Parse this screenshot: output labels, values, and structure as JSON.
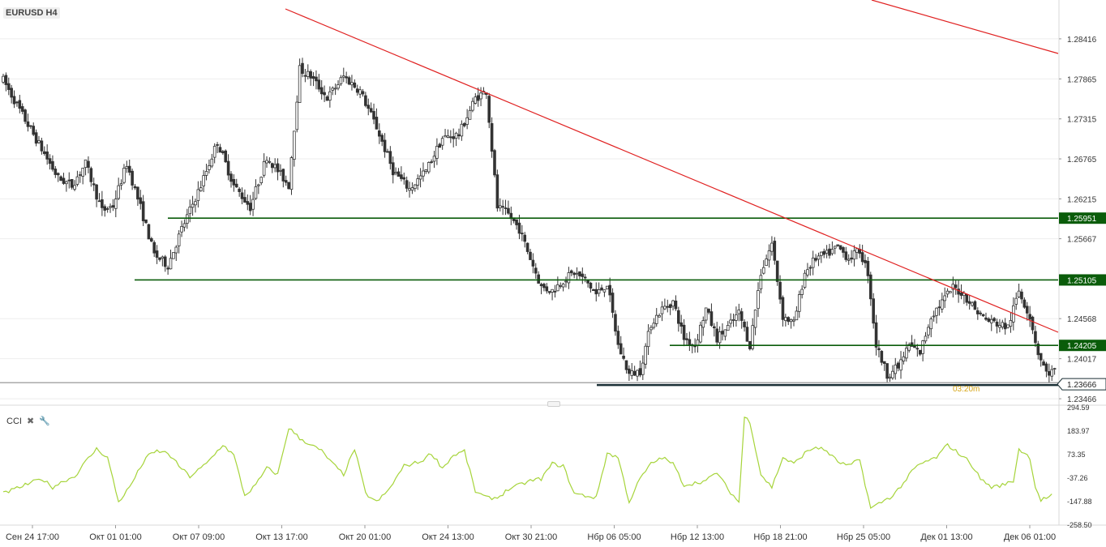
{
  "header": {
    "symbol": "EURUSD H4"
  },
  "cci": {
    "label": "CCI",
    "close_icon": "close-icon",
    "settings_icon": "wrench-icon"
  },
  "colors": {
    "up": "#333333",
    "down": "#333333",
    "trend": "#e02020",
    "support": "#0a5c0a",
    "cci": "#a6d43a",
    "timer": "#d6a516",
    "current_tag": "#ffffff",
    "grid": "#eeeeee"
  },
  "chart_data": [
    {
      "type": "candlestick",
      "title": "EURUSD H4",
      "x": [
        "Сен 24 17:00",
        "Окт 01 01:00",
        "Окт 07 09:00",
        "Окт 13 17:00",
        "Окт 20 01:00",
        "Окт 24 13:00",
        "Окт 30 21:00",
        "Нбр 06 05:00",
        "Нбр 12 13:00",
        "Нбр 18 21:00",
        "Нбр 25 05:00",
        "Дек 01 13:00",
        "Дек 06 01:00"
      ],
      "y_ticks": [
        "1.28416",
        "1.27865",
        "1.27315",
        "1.26765",
        "1.26215",
        "1.25667",
        "1.24568",
        "1.24017",
        "1.23466"
      ],
      "ylim": [
        1.234,
        1.2895
      ],
      "anchors": [
        [
          0,
          1.2785
        ],
        [
          8,
          1.273
        ],
        [
          14,
          1.269
        ],
        [
          20,
          1.265
        ],
        [
          25,
          1.264
        ],
        [
          30,
          1.267
        ],
        [
          36,
          1.2605
        ],
        [
          40,
          1.2612
        ],
        [
          45,
          1.267
        ],
        [
          50,
          1.261
        ],
        [
          55,
          1.2545
        ],
        [
          60,
          1.253
        ],
        [
          65,
          1.258
        ],
        [
          72,
          1.264
        ],
        [
          78,
          1.27
        ],
        [
          84,
          1.264
        ],
        [
          90,
          1.261
        ],
        [
          96,
          1.268
        ],
        [
          100,
          1.266
        ],
        [
          104,
          1.264
        ],
        [
          108,
          1.28
        ],
        [
          112,
          1.279
        ],
        [
          118,
          1.276
        ],
        [
          124,
          1.279
        ],
        [
          130,
          1.277
        ],
        [
          136,
          1.272
        ],
        [
          142,
          1.266
        ],
        [
          148,
          1.2635
        ],
        [
          154,
          1.266
        ],
        [
          160,
          1.2705
        ],
        [
          166,
          1.271
        ],
        [
          172,
          1.276
        ],
        [
          176,
          1.277
        ],
        [
          180,
          1.261
        ],
        [
          184,
          1.26
        ],
        [
          188,
          1.258
        ],
        [
          192,
          1.254
        ],
        [
          196,
          1.25
        ],
        [
          200,
          1.2495
        ],
        [
          204,
          1.251
        ],
        [
          208,
          1.252
        ],
        [
          212,
          1.251
        ],
        [
          216,
          1.249
        ],
        [
          220,
          1.2505
        ],
        [
          224,
          1.242
        ],
        [
          228,
          1.238
        ],
        [
          232,
          1.2385
        ],
        [
          236,
          1.245
        ],
        [
          240,
          1.247
        ],
        [
          244,
          1.248
        ],
        [
          248,
          1.243
        ],
        [
          252,
          1.242
        ],
        [
          256,
          1.247
        ],
        [
          260,
          1.243
        ],
        [
          264,
          1.2445
        ],
        [
          268,
          1.2465
        ],
        [
          272,
          1.242
        ],
        [
          276,
          1.252
        ],
        [
          280,
          1.256
        ],
        [
          284,
          1.246
        ],
        [
          288,
          1.245
        ],
        [
          292,
          1.252
        ],
        [
          296,
          1.254
        ],
        [
          300,
          1.2545
        ],
        [
          304,
          1.2555
        ],
        [
          308,
          1.254
        ],
        [
          312,
          1.255
        ],
        [
          315,
          1.252
        ],
        [
          318,
          1.242
        ],
        [
          322,
          1.238
        ],
        [
          326,
          1.239
        ],
        [
          330,
          1.242
        ],
        [
          334,
          1.241
        ],
        [
          338,
          1.246
        ],
        [
          342,
          1.248
        ],
        [
          346,
          1.25
        ],
        [
          350,
          1.249
        ],
        [
          354,
          1.247
        ],
        [
          358,
          1.2455
        ],
        [
          362,
          1.245
        ],
        [
          366,
          1.2445
        ],
        [
          370,
          1.2495
        ],
        [
          374,
          1.246
        ],
        [
          377,
          1.241
        ],
        [
          380,
          1.2382
        ],
        [
          383,
          1.2385
        ]
      ],
      "horizontal_levels": [
        {
          "label": "1.25951",
          "value": 1.2595
        },
        {
          "label": "1.25105",
          "value": 1.251
        },
        {
          "label": "1.24205",
          "value": 1.242
        }
      ],
      "support_line": {
        "label": "1.23666",
        "value": 1.23666,
        "timer": "03:20m"
      },
      "current_price": {
        "label": "1.23666",
        "value": 1.23666
      },
      "trend_lines": [
        {
          "name": "upper",
          "from": [
            0,
            0
          ],
          "to": [
            1,
            1
          ]
        }
      ]
    },
    {
      "type": "line",
      "title": "CCI",
      "y_ticks": [
        "294.59",
        "183.97",
        "73.35",
        "-37.26",
        "-147.88",
        "-258.50"
      ],
      "ylim": [
        -258.5,
        294.59
      ],
      "anchors": [
        [
          0,
          -110
        ],
        [
          6,
          -80
        ],
        [
          10,
          -60
        ],
        [
          14,
          -40
        ],
        [
          18,
          -80
        ],
        [
          22,
          -50
        ],
        [
          26,
          -30
        ],
        [
          30,
          40
        ],
        [
          34,
          100
        ],
        [
          38,
          60
        ],
        [
          42,
          -150
        ],
        [
          46,
          -80
        ],
        [
          52,
          60
        ],
        [
          56,
          90
        ],
        [
          60,
          80
        ],
        [
          64,
          20
        ],
        [
          68,
          -30
        ],
        [
          74,
          30
        ],
        [
          80,
          120
        ],
        [
          84,
          70
        ],
        [
          88,
          -120
        ],
        [
          92,
          -70
        ],
        [
          96,
          10
        ],
        [
          100,
          -20
        ],
        [
          104,
          200
        ],
        [
          108,
          150
        ],
        [
          112,
          120
        ],
        [
          116,
          90
        ],
        [
          120,
          30
        ],
        [
          124,
          -20
        ],
        [
          128,
          100
        ],
        [
          132,
          -110
        ],
        [
          136,
          -150
        ],
        [
          140,
          -100
        ],
        [
          146,
          20
        ],
        [
          152,
          40
        ],
        [
          156,
          80
        ],
        [
          160,
          10
        ],
        [
          164,
          70
        ],
        [
          168,
          90
        ],
        [
          172,
          -100
        ],
        [
          176,
          -130
        ],
        [
          180,
          -130
        ],
        [
          184,
          -90
        ],
        [
          188,
          -70
        ],
        [
          192,
          -50
        ],
        [
          196,
          -40
        ],
        [
          200,
          30
        ],
        [
          204,
          20
        ],
        [
          208,
          -110
        ],
        [
          212,
          -120
        ],
        [
          216,
          -130
        ],
        [
          220,
          80
        ],
        [
          224,
          60
        ],
        [
          228,
          -150
        ],
        [
          232,
          -40
        ],
        [
          236,
          30
        ],
        [
          240,
          60
        ],
        [
          244,
          30
        ],
        [
          248,
          -70
        ],
        [
          252,
          -60
        ],
        [
          256,
          -50
        ],
        [
          260,
          -10
        ],
        [
          264,
          -90
        ],
        [
          268,
          -150
        ],
        [
          270,
          250
        ],
        [
          272,
          230
        ],
        [
          276,
          -20
        ],
        [
          280,
          -80
        ],
        [
          284,
          60
        ],
        [
          288,
          30
        ],
        [
          292,
          80
        ],
        [
          296,
          110
        ],
        [
          300,
          90
        ],
        [
          304,
          40
        ],
        [
          308,
          20
        ],
        [
          312,
          50
        ],
        [
          316,
          -180
        ],
        [
          320,
          -150
        ],
        [
          324,
          -120
        ],
        [
          328,
          -60
        ],
        [
          332,
          10
        ],
        [
          336,
          40
        ],
        [
          340,
          60
        ],
        [
          344,
          120
        ],
        [
          348,
          80
        ],
        [
          352,
          40
        ],
        [
          356,
          -40
        ],
        [
          360,
          -80
        ],
        [
          364,
          -70
        ],
        [
          368,
          -50
        ],
        [
          370,
          100
        ],
        [
          374,
          60
        ],
        [
          376,
          -80
        ],
        [
          378,
          -140
        ],
        [
          382,
          -120
        ]
      ]
    }
  ]
}
